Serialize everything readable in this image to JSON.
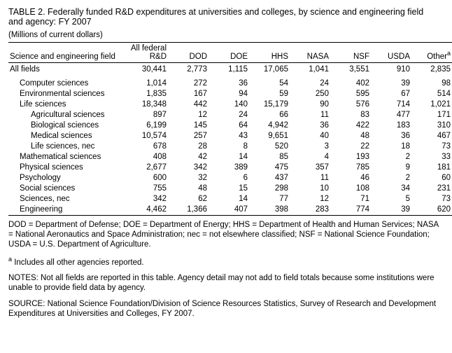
{
  "title": "TABLE 2.  Federally funded R&D expenditures at universities and colleges, by science and engineering field and agency: FY 2007",
  "units": "(Millions of current dollars)",
  "header": {
    "field_label": "Science and engineering field",
    "cols": [
      "All federal R&D",
      "DOD",
      "DOE",
      "HHS",
      "NASA",
      "NSF",
      "USDA",
      "Other"
    ],
    "other_sup": "a"
  },
  "all_fields": {
    "label": "All fields",
    "vals": [
      "30,441",
      "2,773",
      "1,115",
      "17,065",
      "1,041",
      "3,551",
      "910",
      "2,835"
    ]
  },
  "rows": [
    {
      "label": "Computer sciences",
      "indent": 1,
      "vals": [
        "1,014",
        "272",
        "36",
        "54",
        "24",
        "402",
        "39",
        "98"
      ]
    },
    {
      "label": "Environmental sciences",
      "indent": 1,
      "vals": [
        "1,835",
        "167",
        "94",
        "59",
        "250",
        "595",
        "67",
        "514"
      ]
    },
    {
      "label": "Life sciences",
      "indent": 1,
      "vals": [
        "18,348",
        "442",
        "140",
        "15,179",
        "90",
        "576",
        "714",
        "1,021"
      ]
    },
    {
      "label": "Agricultural sciences",
      "indent": 2,
      "vals": [
        "897",
        "12",
        "24",
        "66",
        "11",
        "83",
        "477",
        "171"
      ]
    },
    {
      "label": "Biological sciences",
      "indent": 2,
      "vals": [
        "6,199",
        "145",
        "64",
        "4,942",
        "36",
        "422",
        "183",
        "310"
      ]
    },
    {
      "label": "Medical sciences",
      "indent": 2,
      "vals": [
        "10,574",
        "257",
        "43",
        "9,651",
        "40",
        "48",
        "36",
        "467"
      ]
    },
    {
      "label": "Life sciences, nec",
      "indent": 2,
      "vals": [
        "678",
        "28",
        "8",
        "520",
        "3",
        "22",
        "18",
        "73"
      ]
    },
    {
      "label": "Mathematical sciences",
      "indent": 1,
      "vals": [
        "408",
        "42",
        "14",
        "85",
        "4",
        "193",
        "2",
        "33"
      ]
    },
    {
      "label": "Physical sciences",
      "indent": 1,
      "vals": [
        "2,677",
        "342",
        "389",
        "475",
        "357",
        "785",
        "9",
        "181"
      ]
    },
    {
      "label": "Psychology",
      "indent": 1,
      "vals": [
        "600",
        "32",
        "6",
        "437",
        "11",
        "46",
        "2",
        "60"
      ]
    },
    {
      "label": "Social sciences",
      "indent": 1,
      "vals": [
        "755",
        "48",
        "15",
        "298",
        "10",
        "108",
        "34",
        "231"
      ]
    },
    {
      "label": "Sciences, nec",
      "indent": 1,
      "vals": [
        "342",
        "62",
        "14",
        "77",
        "12",
        "71",
        "5",
        "73"
      ]
    },
    {
      "label": "Engineering",
      "indent": 1,
      "vals": [
        "4,462",
        "1,366",
        "407",
        "398",
        "283",
        "774",
        "39",
        "620"
      ]
    }
  ],
  "footnotes": {
    "defs": "DOD = Department of Defense; DOE = Department of Energy; HHS = Department of Health and Human Services; NASA = National Aeronautics and Space Administration; nec = not elsewhere classified; NSF = National Science Foundation; USDA = U.S. Department of Agriculture.",
    "a_sup": "a",
    "a": " Includes all other agencies reported.",
    "notes": "NOTES:  Not all fields are reported in this table. Agency detail may not add to field totals because some institutions were unable to provide field data by agency.",
    "source": "SOURCE:  National Science Foundation/Division of Science Resources Statistics, Survey of Research and Development Expenditures at Universities and Colleges, FY 2007."
  }
}
